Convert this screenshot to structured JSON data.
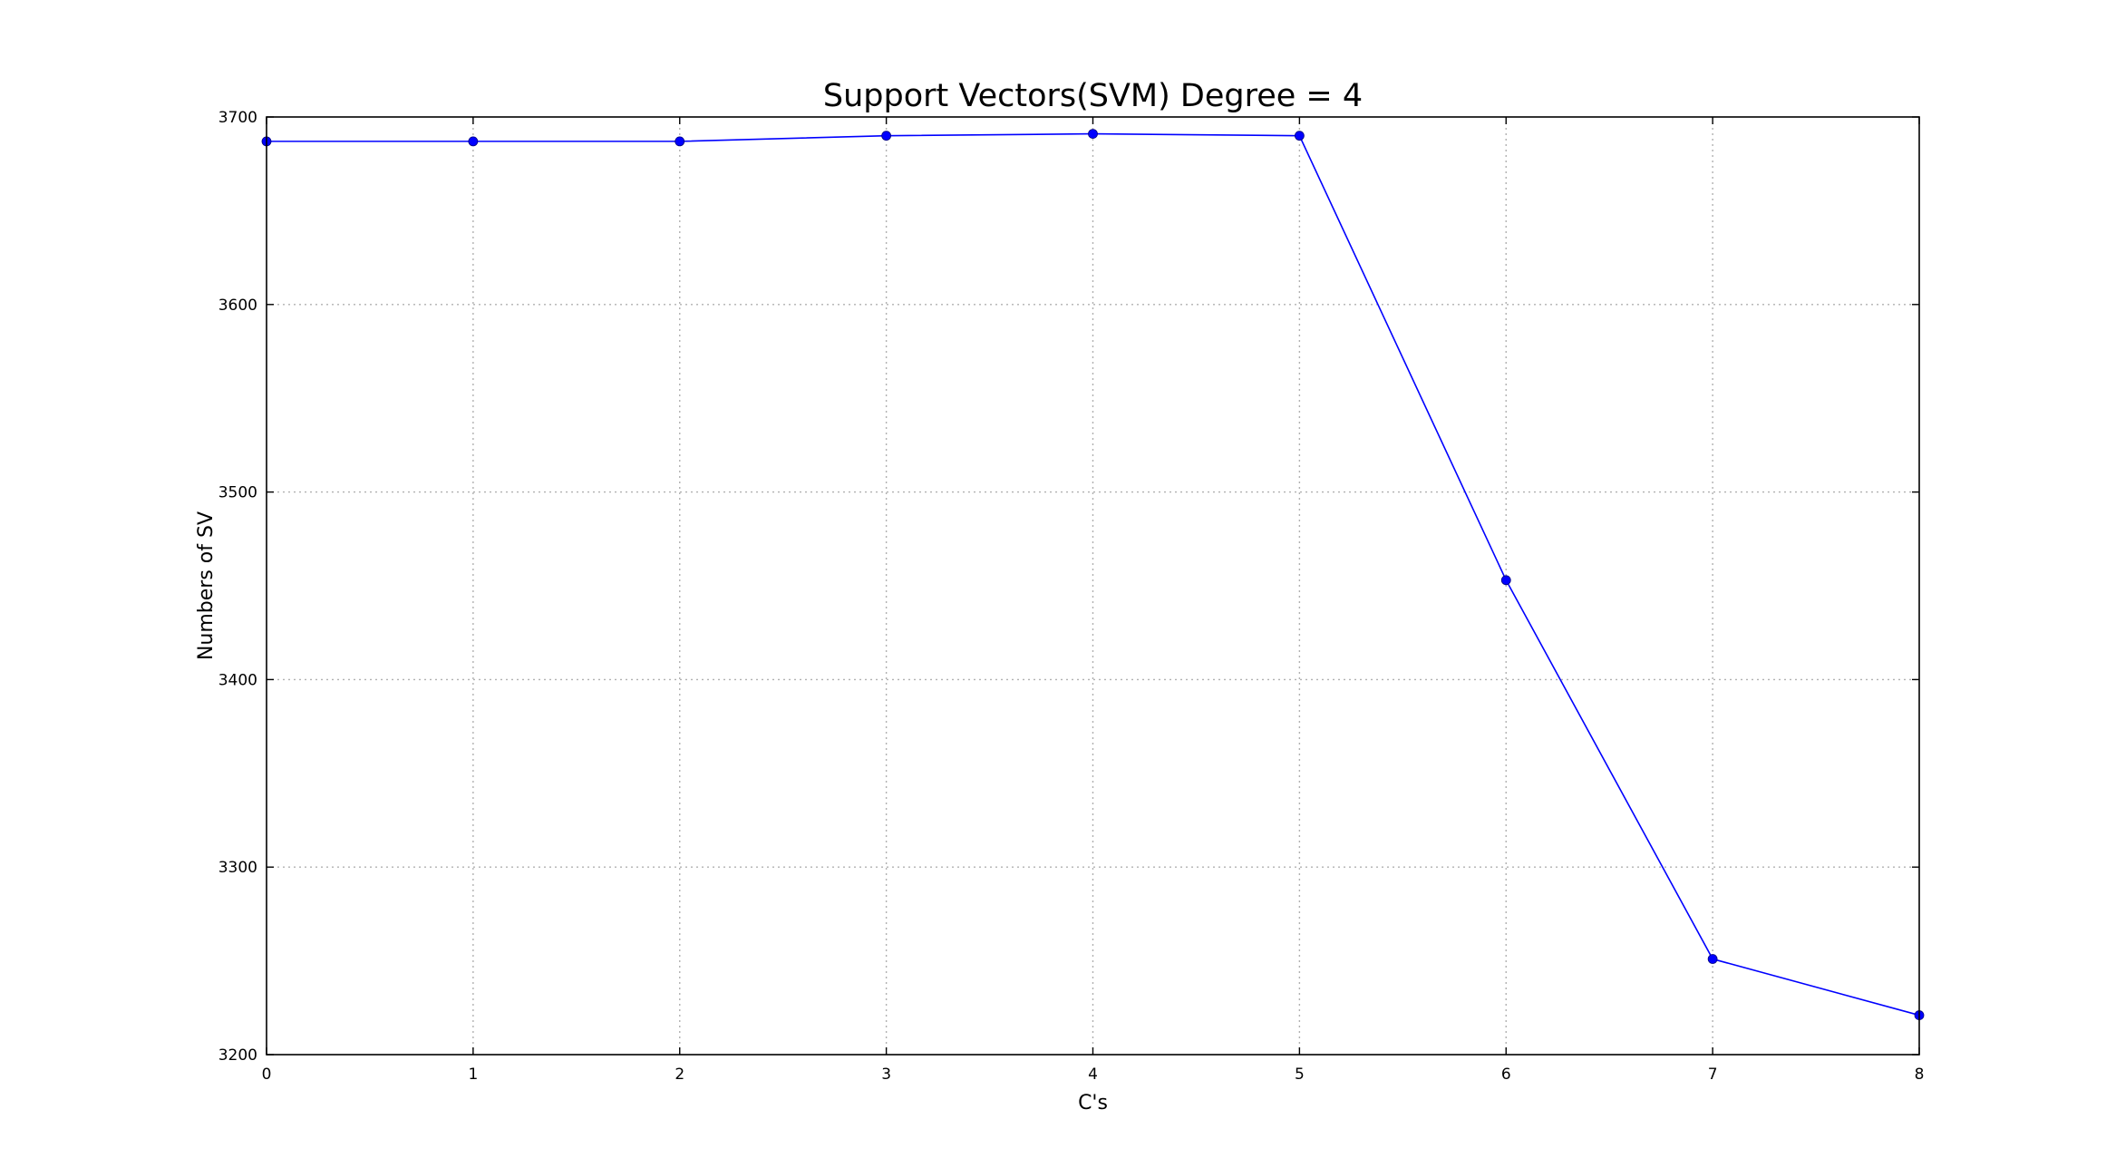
{
  "chart_data": {
    "type": "line",
    "title": "Support Vectors(SVM) Degree = 4",
    "xlabel": "C's",
    "ylabel": "Numbers of SV",
    "x": [
      0,
      1,
      2,
      3,
      4,
      5,
      6,
      7,
      8
    ],
    "series": [
      {
        "values": [
          3687,
          3687,
          3687,
          3690,
          3691,
          3690,
          3453,
          3251,
          3221
        ],
        "color": "#0000ff"
      }
    ],
    "xlim": [
      0,
      8
    ],
    "ylim": [
      3200,
      3700
    ],
    "xticks": [
      0,
      1,
      2,
      3,
      4,
      5,
      6,
      7,
      8
    ],
    "yticks": [
      3200,
      3300,
      3400,
      3500,
      3600,
      3700
    ],
    "grid": true,
    "legend": "none"
  }
}
